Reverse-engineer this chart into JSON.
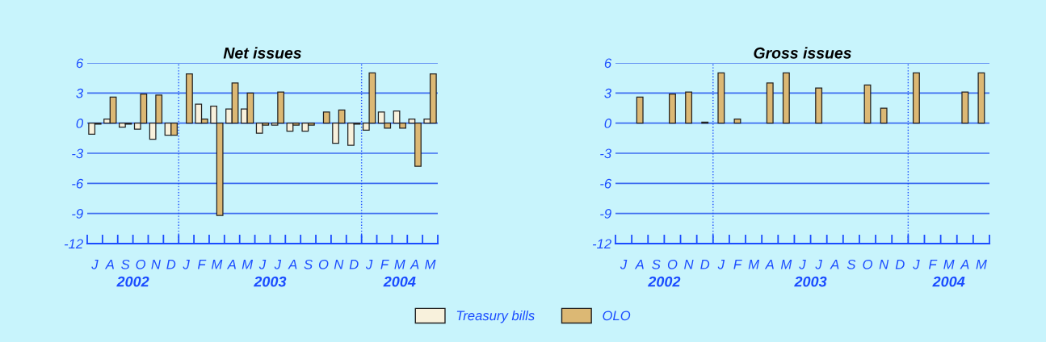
{
  "chart_data": [
    {
      "type": "bar",
      "title": "Net issues",
      "categories": [
        "J",
        "A",
        "S",
        "O",
        "N",
        "D",
        "J",
        "F",
        "M",
        "A",
        "M",
        "J",
        "J",
        "A",
        "S",
        "O",
        "N",
        "D",
        "J",
        "F",
        "M",
        "A",
        "M"
      ],
      "series": [
        {
          "name": "Treasury bills",
          "color": "#f8f1dc",
          "values": [
            -1.1,
            0.4,
            -0.4,
            -0.6,
            -1.6,
            -1.2,
            null,
            1.9,
            1.7,
            1.4,
            1.4,
            -1.0,
            -0.2,
            -0.8,
            -0.8,
            null,
            -2.0,
            -2.2,
            -0.7,
            1.1,
            1.2,
            0.4,
            0.4
          ]
        },
        {
          "name": "OLO",
          "color": "#dcb874",
          "values": [
            -0.1,
            2.6,
            -0.1,
            2.9,
            2.8,
            -1.2,
            4.9,
            0.4,
            -9.2,
            4.0,
            3.0,
            -0.2,
            3.1,
            -0.2,
            -0.2,
            1.1,
            1.3,
            -0.1,
            5.0,
            -0.5,
            -0.5,
            -4.3,
            4.9
          ]
        }
      ],
      "ylim": [
        -12,
        6
      ],
      "yticks": [
        -12,
        -9,
        -6,
        -3,
        0,
        3,
        6
      ],
      "grid": "y",
      "annotations": [
        "2002",
        "2003",
        "2004"
      ],
      "legend": "bottom"
    },
    {
      "type": "bar",
      "title": "Gross issues",
      "categories": [
        "J",
        "A",
        "S",
        "O",
        "N",
        "D",
        "J",
        "F",
        "M",
        "A",
        "M",
        "J",
        "J",
        "A",
        "S",
        "O",
        "N",
        "D",
        "J",
        "F",
        "M",
        "A",
        "M"
      ],
      "series": [
        {
          "color": "#dcb874",
          "values": [
            null,
            2.6,
            null,
            2.9,
            3.1,
            0.1,
            5.0,
            0.4,
            null,
            4.0,
            5.0,
            null,
            3.5,
            null,
            null,
            3.8,
            1.5,
            null,
            5.0,
            null,
            null,
            3.1,
            5.0
          ]
        }
      ],
      "ylim": [
        -12,
        6
      ],
      "yticks": [
        -12,
        -9,
        -6,
        -3,
        0,
        3,
        6
      ],
      "grid": "y",
      "annotations": [
        "2002",
        "2003",
        "2004"
      ]
    }
  ]
}
